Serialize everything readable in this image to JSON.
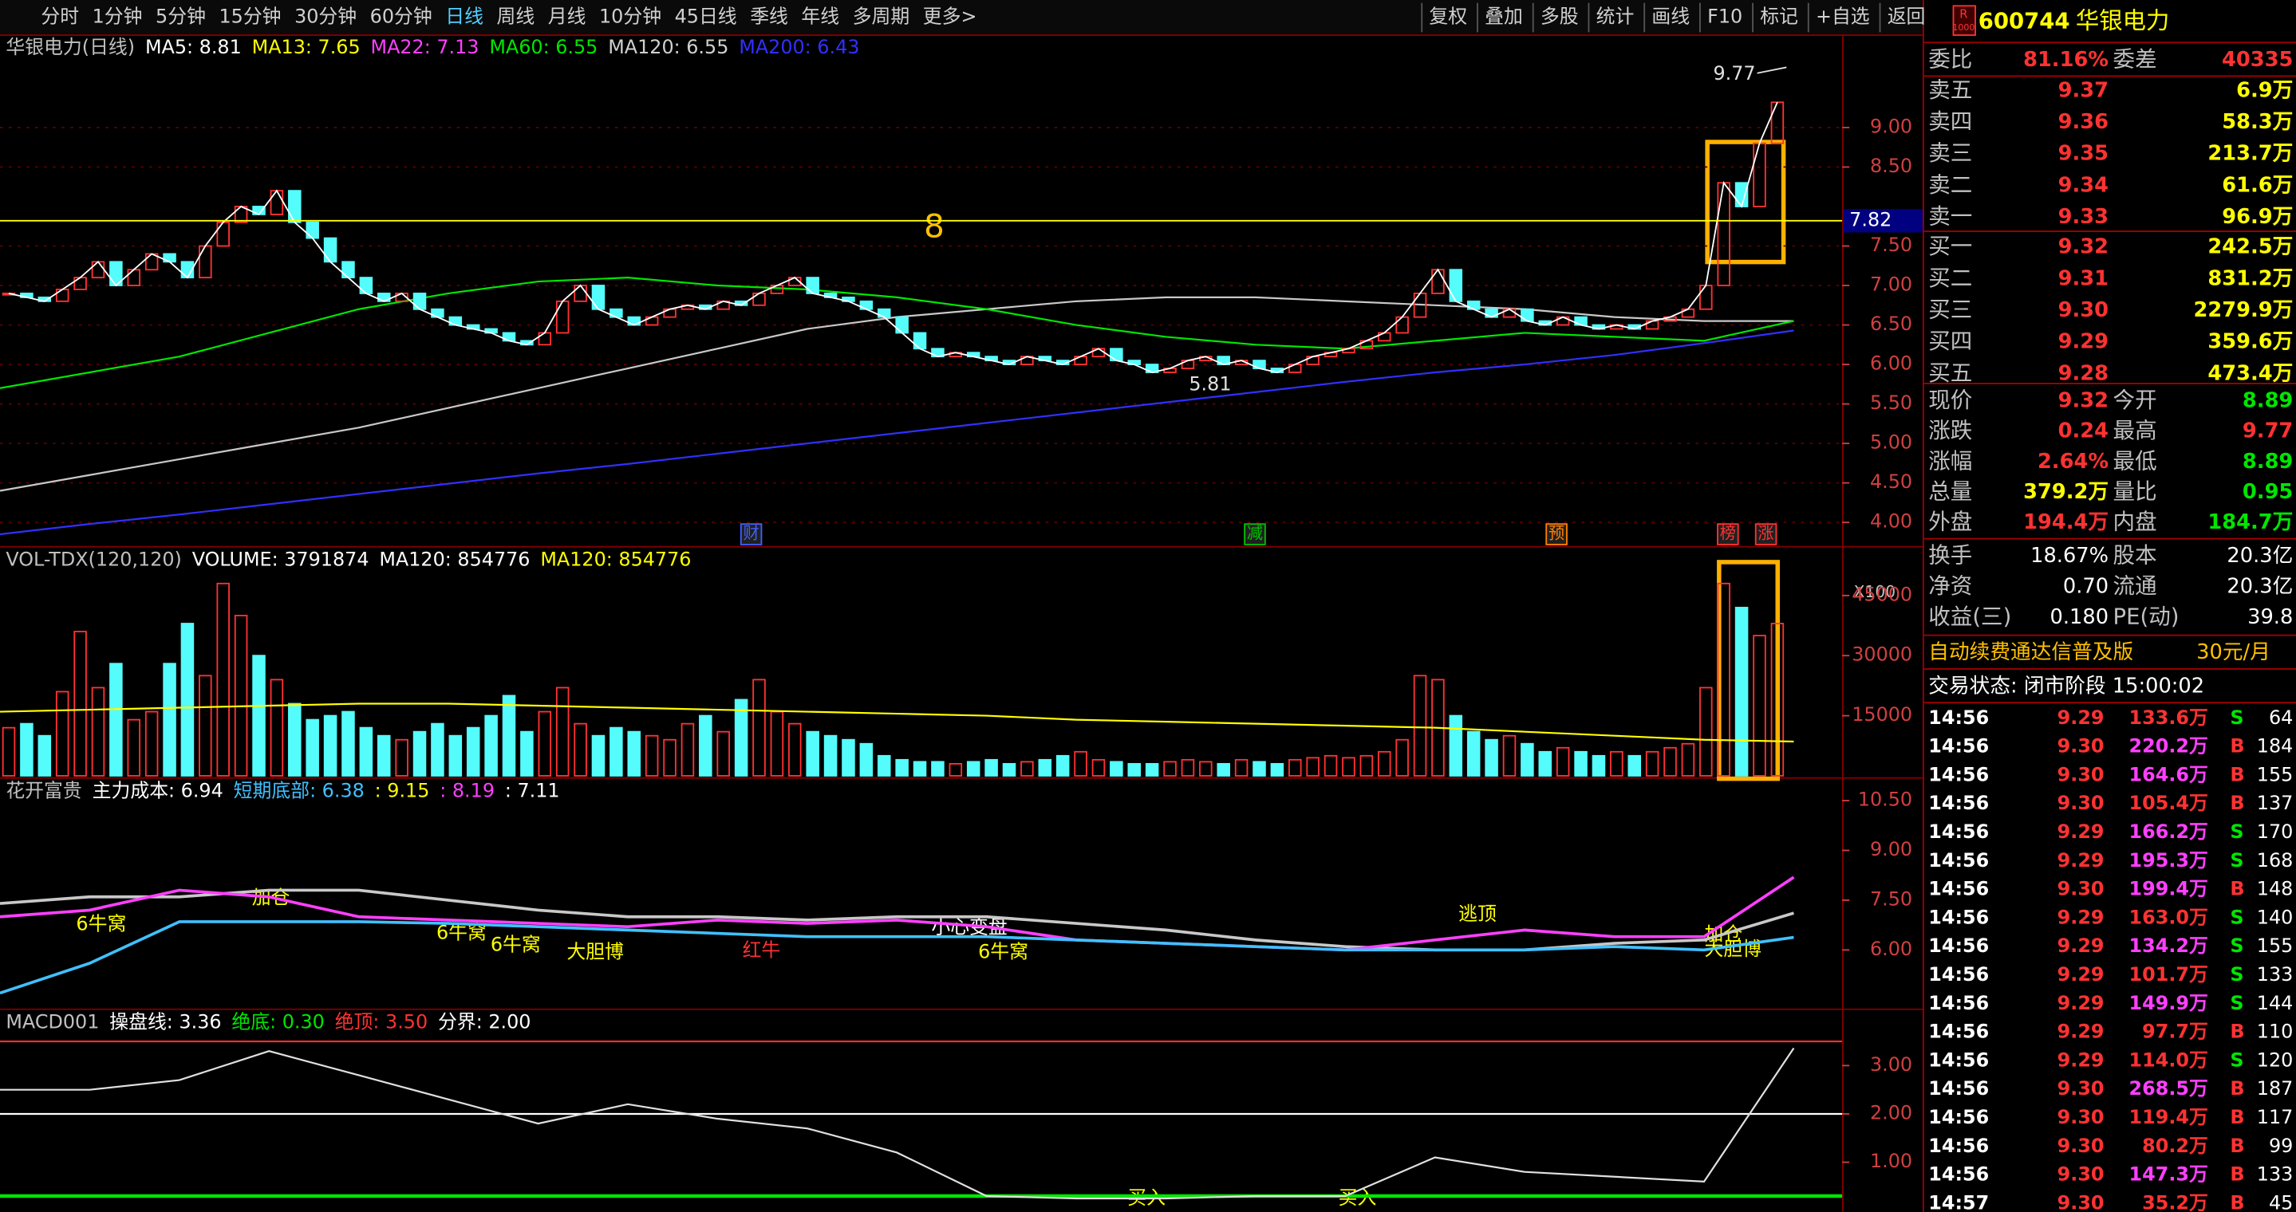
{
  "toolbar": {
    "periods": [
      "分时",
      "1分钟",
      "5分钟",
      "15分钟",
      "30分钟",
      "60分钟",
      "日线",
      "周线",
      "月线",
      "10分钟",
      "45日线",
      "季线",
      "年线",
      "多周期",
      "更多>"
    ],
    "active": 6,
    "buttons": [
      "复权",
      "叠加",
      "多股",
      "统计",
      "画线",
      "F10",
      "标记",
      "+自选",
      "返回"
    ]
  },
  "price_panel": {
    "legend": [
      {
        "text": "华银电力(日线)",
        "color": "#c0c0c0"
      },
      {
        "text": "MA5: 8.81",
        "color": "#ffffff"
      },
      {
        "text": "MA13: 7.65",
        "color": "#ffff00"
      },
      {
        "text": "MA22: 7.13",
        "color": "#ff40ff"
      },
      {
        "text": "MA60: 6.55",
        "color": "#00e600"
      },
      {
        "text": "MA120: 6.55",
        "color": "#d0d0d0"
      },
      {
        "text": "MA200: 6.43",
        "color": "#3030ff"
      }
    ],
    "ylim": [
      3.72,
      10.17
    ],
    "yticks": [
      {
        "value": 9,
        "label": "9.00"
      },
      {
        "value": 8.5,
        "label": "8.50"
      },
      {
        "value": 7.5,
        "label": "7.50"
      },
      {
        "value": 7,
        "label": "7.00"
      },
      {
        "value": 6.5,
        "label": "6.50"
      },
      {
        "value": 6,
        "label": "6.00"
      },
      {
        "value": 5.5,
        "label": "5.50"
      },
      {
        "value": 5,
        "label": "5.00"
      },
      {
        "value": 4.5,
        "label": "4.50"
      },
      {
        "value": 4,
        "label": "4.00"
      }
    ],
    "level": {
      "value": 7.82,
      "label": "7.82"
    },
    "level_note": "8",
    "high_note": "9.77",
    "low_note": "5.81",
    "events": [
      "财",
      "减",
      "预",
      "榜",
      "涨"
    ],
    "closes": [
      6.9,
      6.85,
      6.8,
      6.95,
      7.1,
      7.3,
      7.0,
      7.2,
      7.4,
      7.3,
      7.1,
      7.5,
      7.8,
      8.0,
      7.9,
      8.2,
      7.8,
      7.6,
      7.3,
      7.1,
      6.9,
      6.8,
      6.9,
      6.7,
      6.6,
      6.5,
      6.45,
      6.4,
      6.3,
      6.25,
      6.4,
      6.8,
      7.0,
      6.7,
      6.6,
      6.5,
      6.6,
      6.7,
      6.75,
      6.7,
      6.8,
      6.75,
      6.9,
      7.0,
      7.1,
      6.9,
      6.85,
      6.8,
      6.7,
      6.6,
      6.4,
      6.2,
      6.1,
      6.15,
      6.1,
      6.05,
      6.0,
      6.1,
      6.05,
      6.0,
      6.1,
      6.2,
      6.05,
      6.0,
      5.9,
      5.95,
      6.05,
      6.1,
      6.0,
      6.05,
      5.95,
      5.9,
      6.0,
      6.1,
      6.15,
      6.2,
      6.3,
      6.4,
      6.6,
      6.9,
      7.2,
      6.8,
      6.7,
      6.6,
      6.7,
      6.55,
      6.5,
      6.6,
      6.5,
      6.45,
      6.5,
      6.45,
      6.55,
      6.6,
      6.7,
      7.0,
      8.3,
      8.0,
      8.8,
      9.32
    ],
    "ma_lines": [
      {
        "color": "#3030ff",
        "values": [
          3.85,
          3.98,
          4.1,
          4.23,
          4.36,
          4.49,
          4.62,
          4.74,
          4.87,
          5.0,
          5.13,
          5.26,
          5.39,
          5.52,
          5.65,
          5.78,
          5.9,
          6.0,
          6.12,
          6.27,
          6.43
        ]
      },
      {
        "color": "#c8c8c8",
        "values": [
          4.4,
          4.6,
          4.8,
          5.0,
          5.2,
          5.45,
          5.7,
          5.95,
          6.2,
          6.45,
          6.6,
          6.7,
          6.8,
          6.85,
          6.85,
          6.8,
          6.75,
          6.7,
          6.6,
          6.55,
          6.55
        ]
      },
      {
        "color": "#00e600",
        "values": [
          5.7,
          5.9,
          6.1,
          6.4,
          6.7,
          6.9,
          7.05,
          7.1,
          7.0,
          6.95,
          6.85,
          6.7,
          6.5,
          6.35,
          6.25,
          6.2,
          6.3,
          6.4,
          6.35,
          6.3,
          6.55
        ]
      }
    ]
  },
  "volume_panel": {
    "legend": [
      {
        "text": "VOL-TDX(120,120)",
        "color": "#c0c0c0"
      },
      {
        "text": "VOLUME: 3791874",
        "color": "#ffffff"
      },
      {
        "text": "MA120: 854776",
        "color": "#ffffff"
      },
      {
        "text": "MA120: 854776",
        "color": "#ffff00"
      }
    ],
    "ylim": [
      0,
      57000
    ],
    "yticks": [
      45000,
      30000,
      15000
    ],
    "unit": "X100",
    "values": [
      12000,
      13000,
      10000,
      21000,
      36000,
      22000,
      28000,
      14000,
      16000,
      28000,
      38000,
      25000,
      48000,
      40000,
      30000,
      24000,
      18000,
      14000,
      15000,
      16000,
      12000,
      10000,
      9000,
      11000,
      13000,
      10000,
      12000,
      15000,
      20000,
      11000,
      16000,
      22000,
      13000,
      10000,
      12000,
      11000,
      10000,
      9000,
      13000,
      15000,
      11000,
      19000,
      24000,
      16000,
      13000,
      11000,
      10000,
      9000,
      8000,
      5000,
      4000,
      3500,
      3500,
      3000,
      3500,
      4000,
      3000,
      3500,
      4000,
      5000,
      6000,
      4000,
      3500,
      3000,
      3000,
      3500,
      4000,
      3500,
      3000,
      4000,
      3500,
      3000,
      4000,
      4500,
      5000,
      4500,
      5000,
      6000,
      9000,
      25000,
      24000,
      15000,
      11000,
      9000,
      10000,
      8000,
      6000,
      7000,
      6000,
      5000,
      6000,
      5000,
      6000,
      7000,
      8000,
      22000,
      48000,
      42000,
      35000,
      38000
    ],
    "ma": {
      "color": "#ffff00",
      "values": [
        16000,
        16500,
        17000,
        17500,
        18000,
        18000,
        17500,
        17000,
        16500,
        16000,
        15500,
        15000,
        14000,
        13500,
        13000,
        12500,
        12000,
        11000,
        10000,
        9000,
        8548
      ]
    }
  },
  "indicator_panel": {
    "legend": [
      {
        "text": "花开富贵",
        "color": "#c0c0c0"
      },
      {
        "text": "主力成本: 6.94",
        "color": "#ffffff"
      },
      {
        "text": "短期底部: 6.38",
        "color": "#40c0ff"
      },
      {
        "text": ": 9.15",
        "color": "#ffff00"
      },
      {
        "text": ": 8.19",
        "color": "#ff40ff"
      },
      {
        "text": ": 7.11",
        "color": "#ffffff"
      }
    ],
    "ylim": [
      4.19,
      11.16
    ],
    "yticks": [
      {
        "value": 10.5,
        "label": "10.50"
      },
      {
        "value": 9,
        "label": "9.00"
      },
      {
        "value": 7.5,
        "label": "7.50"
      },
      {
        "value": 6,
        "label": "6.00"
      }
    ],
    "lines": [
      {
        "color": "#c8c8c8",
        "values": [
          7.4,
          7.6,
          7.6,
          7.8,
          7.8,
          7.5,
          7.2,
          7.0,
          7.0,
          6.9,
          7.0,
          7.0,
          6.8,
          6.6,
          6.3,
          6.1,
          6.0,
          6.0,
          6.2,
          6.3,
          7.11
        ]
      },
      {
        "color": "#ff40ff",
        "values": [
          7.0,
          7.2,
          7.8,
          7.6,
          7.0,
          6.9,
          6.8,
          6.7,
          6.9,
          6.8,
          6.9,
          6.7,
          6.3,
          6.2,
          6.1,
          6.0,
          6.3,
          6.6,
          6.4,
          6.4,
          8.19
        ]
      },
      {
        "color": "#40c0ff",
        "values": [
          4.7,
          5.6,
          6.85,
          6.85,
          6.85,
          6.8,
          6.7,
          6.6,
          6.5,
          6.4,
          6.4,
          6.4,
          6.3,
          6.2,
          6.1,
          6.0,
          6.0,
          6.0,
          6.1,
          6.0,
          6.38
        ]
      }
    ],
    "notes": [
      "6牛窝",
      "加仓",
      "6牛窝",
      "6牛窝",
      "大胆博",
      "红牛",
      "小心变盘",
      "6牛窝",
      "逃顶",
      "加仓",
      "大胆博"
    ]
  },
  "macd_panel": {
    "legend": [
      {
        "text": "MACD001",
        "color": "#c0c0c0"
      },
      {
        "text": "操盘线: 3.36",
        "color": "#ffffff"
      },
      {
        "text": "绝底: 0.30",
        "color": "#00e600"
      },
      {
        "text": "绝顶: 3.50",
        "color": "#ff3232"
      },
      {
        "text": "分界: 2.00",
        "color": "#ffffff"
      }
    ],
    "ylim": [
      -0.03,
      4.15
    ],
    "yticks": [
      {
        "value": 3,
        "label": "3.00"
      },
      {
        "value": 2,
        "label": "2.00"
      },
      {
        "value": 1,
        "label": "1.00"
      }
    ],
    "levels": [
      {
        "value": 3.5,
        "color": "#ff3232"
      },
      {
        "value": 2.0,
        "color": "#ffffff"
      },
      {
        "value": 0.3,
        "color": "#00e600"
      }
    ],
    "line": [
      2.5,
      2.5,
      2.7,
      3.3,
      2.8,
      2.3,
      1.8,
      2.2,
      1.9,
      1.7,
      1.2,
      0.3,
      0.25,
      0.25,
      0.3,
      0.3,
      1.1,
      0.8,
      0.7,
      0.6,
      3.36
    ],
    "notes": [
      "买入",
      "买入"
    ]
  },
  "quote": {
    "badge": [
      "R",
      "1000"
    ],
    "code": "600744",
    "name": "华银电力",
    "ratio": [
      "委比",
      "81.16%",
      "委差",
      "40335"
    ],
    "asks": [
      [
        "卖五",
        "9.37",
        "6.9万"
      ],
      [
        "卖四",
        "9.36",
        "58.3万"
      ],
      [
        "卖三",
        "9.35",
        "213.7万"
      ],
      [
        "卖二",
        "9.34",
        "61.6万"
      ],
      [
        "卖一",
        "9.33",
        "96.9万"
      ]
    ],
    "bids": [
      [
        "买一",
        "9.32",
        "242.5万"
      ],
      [
        "买二",
        "9.31",
        "831.2万"
      ],
      [
        "买三",
        "9.30",
        "2279.9万"
      ],
      [
        "买四",
        "9.29",
        "359.6万"
      ],
      [
        "买五",
        "9.28",
        "473.4万"
      ]
    ],
    "stats": [
      [
        "现价",
        "9.32",
        "今开",
        "8.89"
      ],
      [
        "涨跌",
        "0.24",
        "最高",
        "9.77"
      ],
      [
        "涨幅",
        "2.64%",
        "最低",
        "8.89"
      ],
      [
        "总量",
        "379.2万",
        "量比",
        "0.95"
      ],
      [
        "外盘",
        "194.4万",
        "内盘",
        "184.7万"
      ]
    ],
    "stats_colors": [
      [
        "#ff3232",
        "#00e600"
      ],
      [
        "#ff3232",
        "#ff3232"
      ],
      [
        "#ff3232",
        "#00e600"
      ],
      [
        "#ffff00",
        "#00e600"
      ],
      [
        "#ff3232",
        "#00e600"
      ]
    ],
    "fundamentals": [
      [
        "换手",
        "18.67%",
        "股本",
        "20.3亿"
      ],
      [
        "净资",
        "0.70",
        "流通",
        "20.3亿"
      ],
      [
        "收益(三)",
        "0.180",
        "PE(动)",
        "39.8"
      ]
    ],
    "ad": "自动续费通达信普及版",
    "ad_price": "30元/月",
    "status": "交易状态: 闭市阶段 15:00:02",
    "trades": [
      [
        "14:56",
        "9.29",
        "133.6万",
        "S",
        "64"
      ],
      [
        "14:56",
        "9.30",
        "220.2万",
        "B",
        "184"
      ],
      [
        "14:56",
        "9.30",
        "164.6万",
        "B",
        "155"
      ],
      [
        "14:56",
        "9.30",
        "105.4万",
        "B",
        "137"
      ],
      [
        "14:56",
        "9.29",
        "166.2万",
        "S",
        "170"
      ],
      [
        "14:56",
        "9.29",
        "195.3万",
        "S",
        "168"
      ],
      [
        "14:56",
        "9.30",
        "199.4万",
        "B",
        "148"
      ],
      [
        "14:56",
        "9.29",
        "163.0万",
        "S",
        "140"
      ],
      [
        "14:56",
        "9.29",
        "134.2万",
        "S",
        "155"
      ],
      [
        "14:56",
        "9.29",
        "101.7万",
        "S",
        "133"
      ],
      [
        "14:56",
        "9.29",
        "149.9万",
        "S",
        "144"
      ],
      [
        "14:56",
        "9.29",
        "97.7万",
        "B",
        "110"
      ],
      [
        "14:56",
        "9.29",
        "114.0万",
        "S",
        "120"
      ],
      [
        "14:56",
        "9.30",
        "268.5万",
        "B",
        "187"
      ],
      [
        "14:56",
        "9.30",
        "119.4万",
        "B",
        "117"
      ],
      [
        "14:56",
        "9.30",
        "80.2万",
        "B",
        "99"
      ],
      [
        "14:56",
        "9.30",
        "147.3万",
        "B",
        "133"
      ],
      [
        "14:57",
        "9.30",
        "35.2万",
        "B",
        "45"
      ]
    ],
    "trade_vol_colors": [
      "#ff3232",
      "#ff40ff",
      "#ff40ff",
      "#ff3232",
      "#ff40ff",
      "#ff40ff",
      "#ff40ff",
      "#ff3232",
      "#ff40ff",
      "#ff3232",
      "#ff40ff",
      "#ff3232",
      "#ff3232",
      "#ff40ff",
      "#ff3232",
      "#ff3232",
      "#ff40ff",
      "#ff3232"
    ]
  }
}
